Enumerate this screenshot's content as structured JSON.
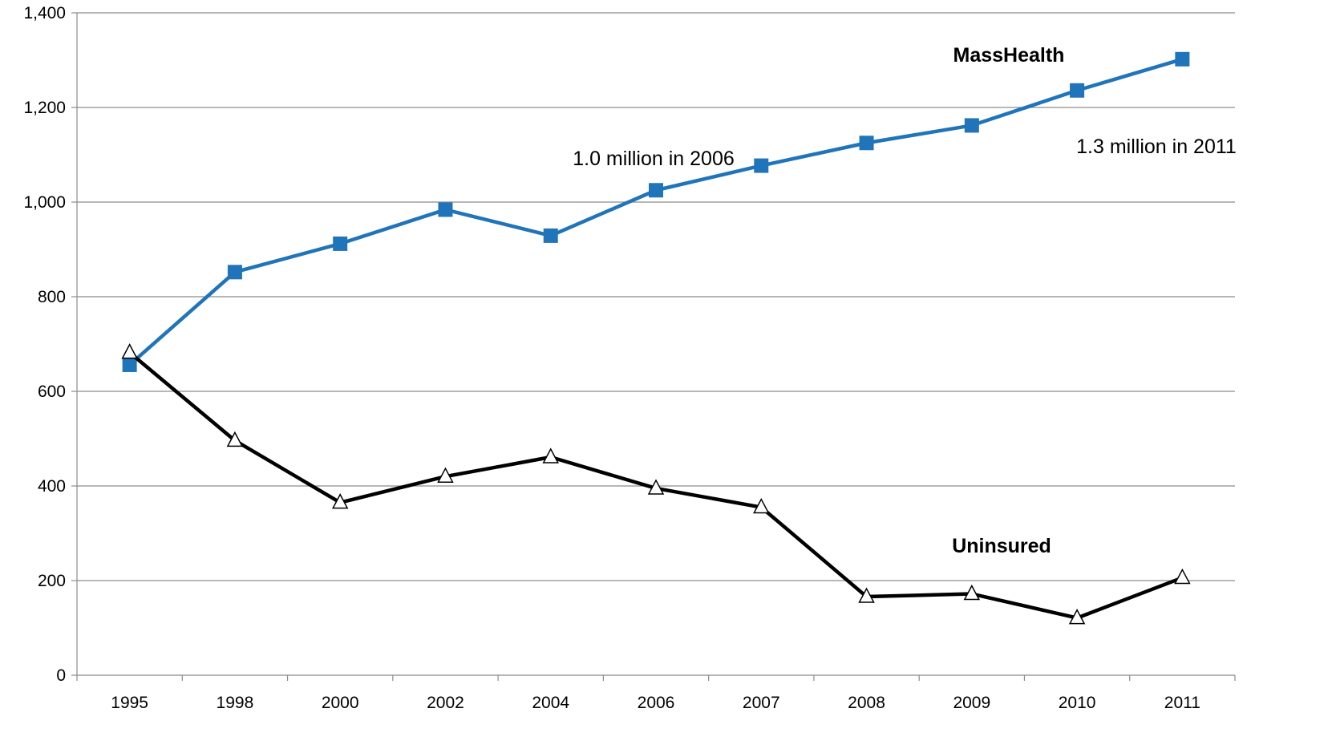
{
  "chart_data": {
    "type": "line",
    "categories": [
      "1995",
      "1998",
      "2000",
      "2002",
      "2004",
      "2006",
      "2007",
      "2008",
      "2009",
      "2010",
      "2011"
    ],
    "series": [
      {
        "name": "MassHealth",
        "color": "#1F74BA",
        "marker": "square",
        "values": [
          656,
          852,
          912,
          984,
          929,
          1025,
          1077,
          1125,
          1162,
          1236,
          1302
        ]
      },
      {
        "name": "Uninsured",
        "color": "#000000",
        "marker": "triangle-open",
        "values": [
          682,
          496,
          365,
          420,
          461,
          395,
          355,
          166,
          172,
          121,
          206
        ]
      }
    ],
    "annotations": [
      {
        "text": "1.0 million in 2006"
      },
      {
        "text": "1.3 million in 2011"
      }
    ],
    "y_ticks": [
      "0",
      "200",
      "400",
      "600",
      "800",
      "1,000",
      "1,200",
      "1,400"
    ],
    "ylim": [
      0,
      1400
    ],
    "title": "",
    "xlabel": "",
    "ylabel": "",
    "grid": true,
    "legend": "none"
  }
}
